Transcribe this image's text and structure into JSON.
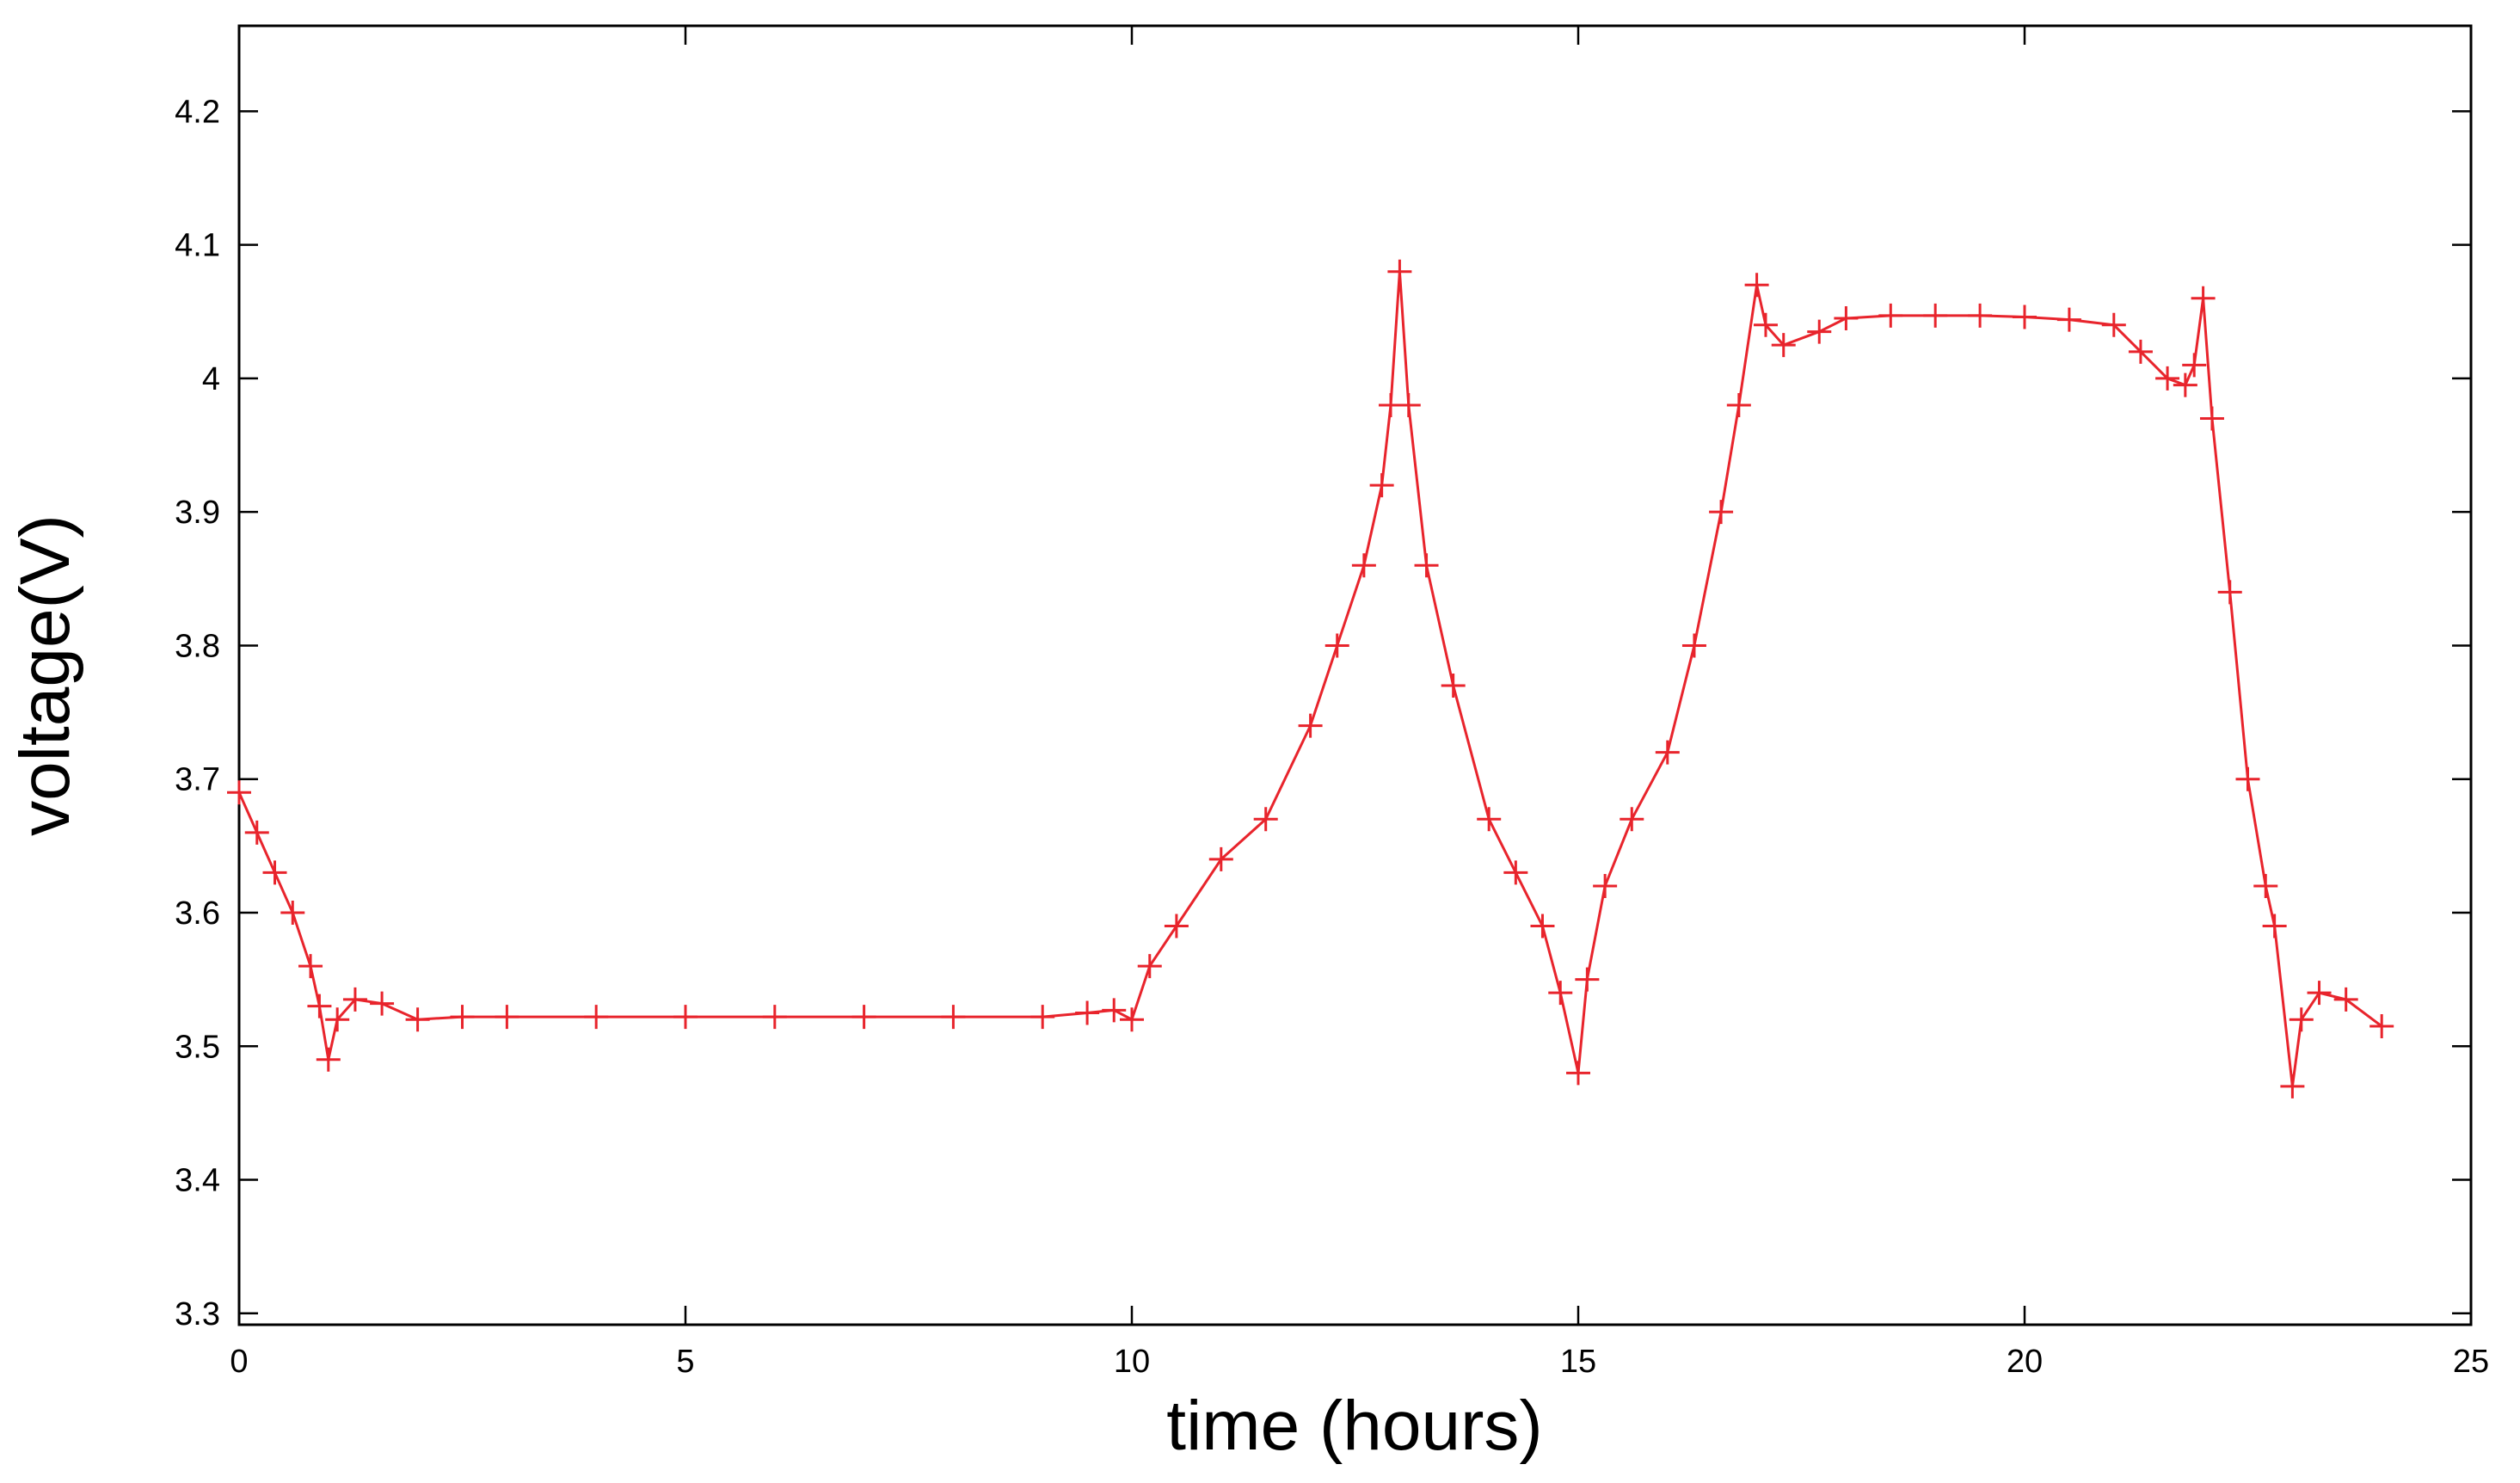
{
  "chart_data": {
    "type": "line",
    "x_label": "time (hours)",
    "y_label": "voltage(V)",
    "x": [
      0,
      0.2,
      0.4,
      0.6,
      0.8,
      0.9,
      1.0,
      1.1,
      1.3,
      1.6,
      2.0,
      2.5,
      3,
      4,
      5,
      6,
      7,
      8,
      9,
      9.5,
      9.8,
      10.0,
      10.2,
      10.5,
      11.0,
      11.5,
      12.0,
      12.3,
      12.6,
      12.8,
      12.9,
      13.0,
      13.1,
      13.3,
      13.6,
      14.0,
      14.3,
      14.6,
      14.8,
      15.0,
      15.1,
      15.3,
      15.6,
      16.0,
      16.3,
      16.6,
      16.8,
      17.0,
      17.1,
      17.3,
      17.7,
      18.0,
      18.5,
      19.0,
      19.5,
      20.0,
      20.5,
      21.0,
      21.3,
      21.6,
      21.8,
      21.9,
      22.0,
      22.1,
      22.3,
      22.5,
      22.7,
      22.8,
      23.0,
      23.1,
      23.3,
      23.6,
      24.0
    ],
    "series": [
      {
        "color": "#e8242c",
        "values": [
          3.69,
          3.66,
          3.63,
          3.6,
          3.56,
          3.53,
          3.49,
          3.52,
          3.535,
          3.532,
          3.52,
          3.522,
          3.522,
          3.522,
          3.522,
          3.522,
          3.522,
          3.522,
          3.522,
          3.525,
          3.527,
          3.52,
          3.56,
          3.59,
          3.64,
          3.67,
          3.74,
          3.8,
          3.86,
          3.92,
          3.98,
          4.08,
          3.98,
          3.86,
          3.77,
          3.67,
          3.63,
          3.59,
          3.54,
          3.48,
          3.55,
          3.62,
          3.67,
          3.72,
          3.8,
          3.9,
          3.98,
          4.07,
          4.04,
          4.025,
          4.035,
          4.045,
          4.047,
          4.047,
          4.047,
          4.046,
          4.044,
          4.04,
          4.02,
          4.0,
          3.995,
          4.01,
          4.06,
          3.97,
          3.84,
          3.7,
          3.62,
          3.59,
          3.47,
          3.52,
          3.54,
          3.535,
          3.515
        ]
      }
    ],
    "xlim": [
      0,
      25
    ],
    "xticks": [
      0,
      5,
      10,
      15,
      20,
      25
    ],
    "ylim": [
      3.2915,
      4.264
    ],
    "yticks": [
      3.3,
      3.4,
      3.5,
      3.6,
      3.7,
      3.8,
      3.9,
      4,
      4.1,
      4.2
    ]
  }
}
